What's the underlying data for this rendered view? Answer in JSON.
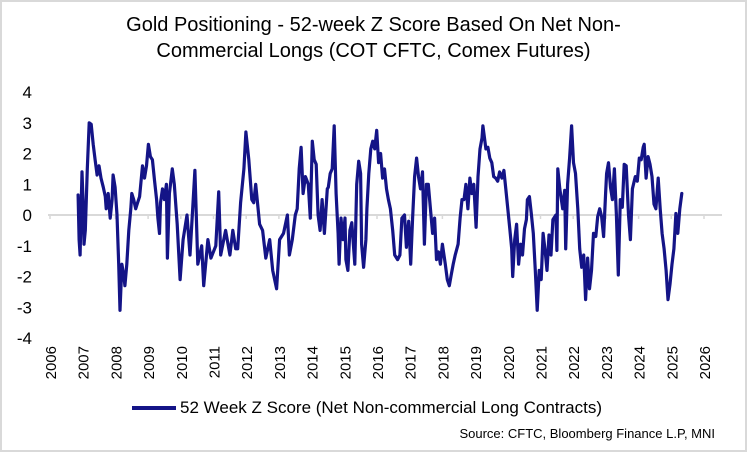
{
  "chart_data": {
    "type": "line",
    "title": "Gold Positioning - 52-week Z Score Based On Net Non-Commercial Longs (COT CFTC, Comex Futures)",
    "title_lines": [
      "Gold Positioning - 52-week Z Score Based On Net Non-",
      "Commercial Longs (COT CFTC, Comex Futures)"
    ],
    "xlabel": "",
    "ylabel": "",
    "xlim": [
      2006,
      2026
    ],
    "ylim": [
      -4,
      4
    ],
    "x_ticks": [
      "2006",
      "2007",
      "2008",
      "2009",
      "2010",
      "2011",
      "2012",
      "2013",
      "2014",
      "2015",
      "2016",
      "2017",
      "2018",
      "2019",
      "2020",
      "2021",
      "2022",
      "2023",
      "2024",
      "2025",
      "2026"
    ],
    "y_ticks": [
      "4",
      "3",
      "2",
      "1",
      "0",
      "-1",
      "-2",
      "-3",
      "-4"
    ],
    "grid": false,
    "legend_position": "bottom",
    "source": "Source: CFTC, Bloomberg Finance L.P, MNI",
    "series": [
      {
        "name": "52 Week Z Score (Net Non-commercial Long Contracts)",
        "color": "#141487",
        "points": [
          [
            2006.86,
            0.65
          ],
          [
            2006.89,
            -0.8
          ],
          [
            2006.92,
            -1.3
          ],
          [
            2006.95,
            0.2
          ],
          [
            2006.98,
            1.4
          ],
          [
            2007.01,
            0.5
          ],
          [
            2007.04,
            -0.95
          ],
          [
            2007.08,
            -0.5
          ],
          [
            2007.14,
            1.5
          ],
          [
            2007.2,
            3.0
          ],
          [
            2007.26,
            2.95
          ],
          [
            2007.32,
            2.3
          ],
          [
            2007.38,
            1.8
          ],
          [
            2007.44,
            1.3
          ],
          [
            2007.5,
            1.6
          ],
          [
            2007.56,
            1.2
          ],
          [
            2007.63,
            0.9
          ],
          [
            2007.69,
            0.6
          ],
          [
            2007.72,
            0.2
          ],
          [
            2007.78,
            0.7
          ],
          [
            2007.84,
            -0.1
          ],
          [
            2007.9,
            0.5
          ],
          [
            2007.93,
            1.3
          ],
          [
            2007.99,
            0.9
          ],
          [
            2008.05,
            0.0
          ],
          [
            2008.1,
            -1.6
          ],
          [
            2008.14,
            -3.1
          ],
          [
            2008.2,
            -1.6
          ],
          [
            2008.26,
            -2.0
          ],
          [
            2008.29,
            -2.3
          ],
          [
            2008.35,
            -1.6
          ],
          [
            2008.41,
            -0.5
          ],
          [
            2008.47,
            0.2
          ],
          [
            2008.5,
            0.7
          ],
          [
            2008.56,
            0.5
          ],
          [
            2008.62,
            0.2
          ],
          [
            2008.68,
            0.4
          ],
          [
            2008.74,
            0.6
          ],
          [
            2008.83,
            1.6
          ],
          [
            2008.89,
            1.2
          ],
          [
            2008.95,
            1.6
          ],
          [
            2009.01,
            2.3
          ],
          [
            2009.07,
            1.9
          ],
          [
            2009.13,
            1.8
          ],
          [
            2009.2,
            1.1
          ],
          [
            2009.26,
            0.5
          ],
          [
            2009.3,
            -0.1
          ],
          [
            2009.35,
            -0.6
          ],
          [
            2009.38,
            0.4
          ],
          [
            2009.44,
            0.85
          ],
          [
            2009.5,
            0.5
          ],
          [
            2009.56,
            1.0
          ],
          [
            2009.59,
            -1.4
          ],
          [
            2009.65,
            0.7
          ],
          [
            2009.74,
            1.5
          ],
          [
            2009.8,
            1.0
          ],
          [
            2009.89,
            -0.3
          ],
          [
            2009.98,
            -2.1
          ],
          [
            2010.07,
            -0.8
          ],
          [
            2010.19,
            0.0
          ],
          [
            2010.28,
            -1.3
          ],
          [
            2010.43,
            1.45
          ],
          [
            2010.52,
            -1.6
          ],
          [
            2010.64,
            -1.0
          ],
          [
            2010.7,
            -2.3
          ],
          [
            2010.83,
            -0.8
          ],
          [
            2010.92,
            -1.4
          ],
          [
            2011.07,
            -1.0
          ],
          [
            2011.16,
            0.75
          ],
          [
            2011.22,
            -1.3
          ],
          [
            2011.37,
            -0.5
          ],
          [
            2011.5,
            -1.3
          ],
          [
            2011.59,
            -0.5
          ],
          [
            2011.68,
            -1.1
          ],
          [
            2011.74,
            -1.1
          ],
          [
            2011.83,
            0.4
          ],
          [
            2011.93,
            1.5
          ],
          [
            2011.99,
            2.7
          ],
          [
            2012.08,
            1.8
          ],
          [
            2012.17,
            0.5
          ],
          [
            2012.23,
            0.4
          ],
          [
            2012.29,
            1.0
          ],
          [
            2012.41,
            -0.3
          ],
          [
            2012.5,
            -0.5
          ],
          [
            2012.6,
            -1.4
          ],
          [
            2012.72,
            -0.8
          ],
          [
            2012.81,
            -1.8
          ],
          [
            2012.93,
            -2.4
          ],
          [
            2013.02,
            -0.8
          ],
          [
            2013.14,
            -0.6
          ],
          [
            2013.26,
            0.0
          ],
          [
            2013.32,
            -1.3
          ],
          [
            2013.41,
            -0.8
          ],
          [
            2013.5,
            0.0
          ],
          [
            2013.56,
            0.2
          ],
          [
            2013.62,
            1.5
          ],
          [
            2013.68,
            2.2
          ],
          [
            2013.74,
            0.7
          ],
          [
            2013.81,
            1.25
          ],
          [
            2013.9,
            1.0
          ],
          [
            2013.96,
            -0.1
          ],
          [
            2014.02,
            2.4
          ],
          [
            2014.08,
            1.8
          ],
          [
            2014.14,
            1.65
          ],
          [
            2014.2,
            0.0
          ],
          [
            2014.26,
            -0.5
          ],
          [
            2014.32,
            0.5
          ],
          [
            2014.39,
            -0.6
          ],
          [
            2014.48,
            0.85
          ],
          [
            2014.51,
            0.9
          ],
          [
            2014.57,
            1.35
          ],
          [
            2014.63,
            1.5
          ],
          [
            2014.69,
            2.9
          ],
          [
            2014.75,
            0.7
          ],
          [
            2014.81,
            -0.6
          ],
          [
            2014.84,
            -1.6
          ],
          [
            2014.9,
            -0.1
          ],
          [
            2014.96,
            -0.8
          ],
          [
            2015.02,
            -0.1
          ],
          [
            2015.05,
            -1.45
          ],
          [
            2015.11,
            -1.8
          ],
          [
            2015.17,
            -0.5
          ],
          [
            2015.23,
            -0.25
          ],
          [
            2015.32,
            -1.6
          ],
          [
            2015.38,
            1.0
          ],
          [
            2015.44,
            1.75
          ],
          [
            2015.5,
            1.35
          ],
          [
            2015.53,
            -0.95
          ],
          [
            2015.59,
            -1.7
          ],
          [
            2015.66,
            -0.8
          ],
          [
            2015.69,
            0.2
          ],
          [
            2015.75,
            1.35
          ],
          [
            2015.81,
            2.15
          ],
          [
            2015.87,
            2.4
          ],
          [
            2015.93,
            2.15
          ],
          [
            2015.99,
            2.75
          ],
          [
            2016.05,
            1.7
          ],
          [
            2016.11,
            2.0
          ],
          [
            2016.17,
            1.2
          ],
          [
            2016.23,
            1.5
          ],
          [
            2016.29,
            0.85
          ],
          [
            2016.35,
            0.5
          ],
          [
            2016.41,
            0.2
          ],
          [
            2016.48,
            -0.5
          ],
          [
            2016.54,
            -1.3
          ],
          [
            2016.63,
            -1.45
          ],
          [
            2016.7,
            -1.3
          ],
          [
            2016.76,
            -0.1
          ],
          [
            2016.84,
            0.0
          ],
          [
            2016.9,
            -1.05
          ],
          [
            2016.97,
            -0.2
          ],
          [
            2017.03,
            -1.6
          ],
          [
            2017.09,
            -0.1
          ],
          [
            2017.15,
            1.25
          ],
          [
            2017.21,
            1.85
          ],
          [
            2017.27,
            1.25
          ],
          [
            2017.33,
            0.85
          ],
          [
            2017.39,
            1.4
          ],
          [
            2017.45,
            -0.95
          ],
          [
            2017.51,
            1.0
          ],
          [
            2017.57,
            1.0
          ],
          [
            2017.63,
            0.25
          ],
          [
            2017.7,
            -0.6
          ],
          [
            2017.76,
            -0.1
          ],
          [
            2017.82,
            -1.45
          ],
          [
            2017.88,
            -1.2
          ],
          [
            2017.94,
            -1.6
          ],
          [
            2018.0,
            -0.95
          ],
          [
            2018.09,
            -1.6
          ],
          [
            2018.15,
            -2.1
          ],
          [
            2018.21,
            -2.3
          ],
          [
            2018.27,
            -1.95
          ],
          [
            2018.33,
            -1.6
          ],
          [
            2018.39,
            -1.3
          ],
          [
            2018.48,
            -0.95
          ],
          [
            2018.54,
            -0.1
          ],
          [
            2018.6,
            0.5
          ],
          [
            2018.66,
            0.5
          ],
          [
            2018.72,
            1.0
          ],
          [
            2018.78,
            0.2
          ],
          [
            2018.84,
            1.2
          ],
          [
            2018.9,
            0.7
          ],
          [
            2018.96,
            1.0
          ],
          [
            2019.03,
            -0.4
          ],
          [
            2019.09,
            1.25
          ],
          [
            2019.15,
            2.15
          ],
          [
            2019.21,
            2.5
          ],
          [
            2019.24,
            2.9
          ],
          [
            2019.33,
            2.15
          ],
          [
            2019.39,
            2.2
          ],
          [
            2019.45,
            1.85
          ],
          [
            2019.51,
            1.7
          ],
          [
            2019.57,
            1.25
          ],
          [
            2019.63,
            1.2
          ],
          [
            2019.69,
            1.1
          ],
          [
            2019.75,
            1.4
          ],
          [
            2019.82,
            1.2
          ],
          [
            2019.88,
            1.45
          ],
          [
            2019.94,
            0.85
          ],
          [
            2020.0,
            0.2
          ],
          [
            2020.06,
            -0.45
          ],
          [
            2020.12,
            -1.1
          ],
          [
            2020.15,
            -2.0
          ],
          [
            2020.21,
            -0.8
          ],
          [
            2020.27,
            -0.3
          ],
          [
            2020.33,
            -1.6
          ],
          [
            2020.39,
            -0.95
          ],
          [
            2020.45,
            -1.3
          ],
          [
            2020.51,
            -0.45
          ],
          [
            2020.57,
            -0.15
          ],
          [
            2020.6,
            0.5
          ],
          [
            2020.66,
            0.6
          ],
          [
            2020.72,
            0.05
          ],
          [
            2020.78,
            -0.6
          ],
          [
            2020.84,
            -1.8
          ],
          [
            2020.9,
            -3.1
          ],
          [
            2020.96,
            -1.8
          ],
          [
            2021.02,
            -2.1
          ],
          [
            2021.08,
            -0.6
          ],
          [
            2021.14,
            -1.15
          ],
          [
            2021.2,
            -1.8
          ],
          [
            2021.26,
            -0.65
          ],
          [
            2021.32,
            -1.3
          ],
          [
            2021.38,
            -0.15
          ],
          [
            2021.47,
            0.0
          ],
          [
            2021.5,
            -1.15
          ],
          [
            2021.53,
            1.5
          ],
          [
            2021.59,
            0.85
          ],
          [
            2021.68,
            0.2
          ],
          [
            2021.74,
            0.8
          ],
          [
            2021.77,
            -1.1
          ],
          [
            2021.83,
            1.0
          ],
          [
            2021.89,
            1.85
          ],
          [
            2021.95,
            2.9
          ],
          [
            2022.01,
            1.7
          ],
          [
            2022.07,
            1.35
          ],
          [
            2022.14,
            0.2
          ],
          [
            2022.2,
            -1.1
          ],
          [
            2022.26,
            -1.7
          ],
          [
            2022.32,
            -1.3
          ],
          [
            2022.38,
            -2.75
          ],
          [
            2022.44,
            -1.4
          ],
          [
            2022.5,
            -2.4
          ],
          [
            2022.56,
            -1.8
          ],
          [
            2022.62,
            -0.6
          ],
          [
            2022.69,
            -0.7
          ],
          [
            2022.75,
            -0.05
          ],
          [
            2022.81,
            0.2
          ],
          [
            2022.87,
            -0.05
          ],
          [
            2022.93,
            -0.7
          ],
          [
            2022.99,
            0.7
          ],
          [
            2023.02,
            1.35
          ],
          [
            2023.08,
            1.7
          ],
          [
            2023.14,
            0.9
          ],
          [
            2023.2,
            0.5
          ],
          [
            2023.26,
            1.5
          ],
          [
            2023.32,
            0.0
          ],
          [
            2023.38,
            -1.95
          ],
          [
            2023.44,
            0.5
          ],
          [
            2023.5,
            0.25
          ],
          [
            2023.56,
            1.65
          ],
          [
            2023.62,
            1.6
          ],
          [
            2023.69,
            0.0
          ],
          [
            2023.75,
            -0.8
          ],
          [
            2023.81,
            0.85
          ],
          [
            2023.9,
            1.25
          ],
          [
            2023.96,
            1.1
          ],
          [
            2024.02,
            1.85
          ],
          [
            2024.08,
            1.8
          ],
          [
            2024.14,
            2.2
          ],
          [
            2024.17,
            2.3
          ],
          [
            2024.23,
            1.2
          ],
          [
            2024.29,
            1.9
          ],
          [
            2024.35,
            1.65
          ],
          [
            2024.41,
            1.25
          ],
          [
            2024.47,
            0.35
          ],
          [
            2024.53,
            0.2
          ],
          [
            2024.6,
            1.2
          ],
          [
            2024.66,
            0.2
          ],
          [
            2024.72,
            -0.6
          ],
          [
            2024.78,
            -1.1
          ],
          [
            2024.84,
            -1.8
          ],
          [
            2024.9,
            -2.75
          ],
          [
            2024.96,
            -2.25
          ],
          [
            2025.02,
            -1.6
          ],
          [
            2025.08,
            -1.1
          ],
          [
            2025.14,
            0.05
          ],
          [
            2025.2,
            -0.6
          ],
          [
            2025.26,
            0.2
          ],
          [
            2025.32,
            0.7
          ]
        ]
      }
    ]
  },
  "legend": {
    "label": "52 Week Z Score (Net Non-commercial Long Contracts)",
    "color": "#141487"
  }
}
